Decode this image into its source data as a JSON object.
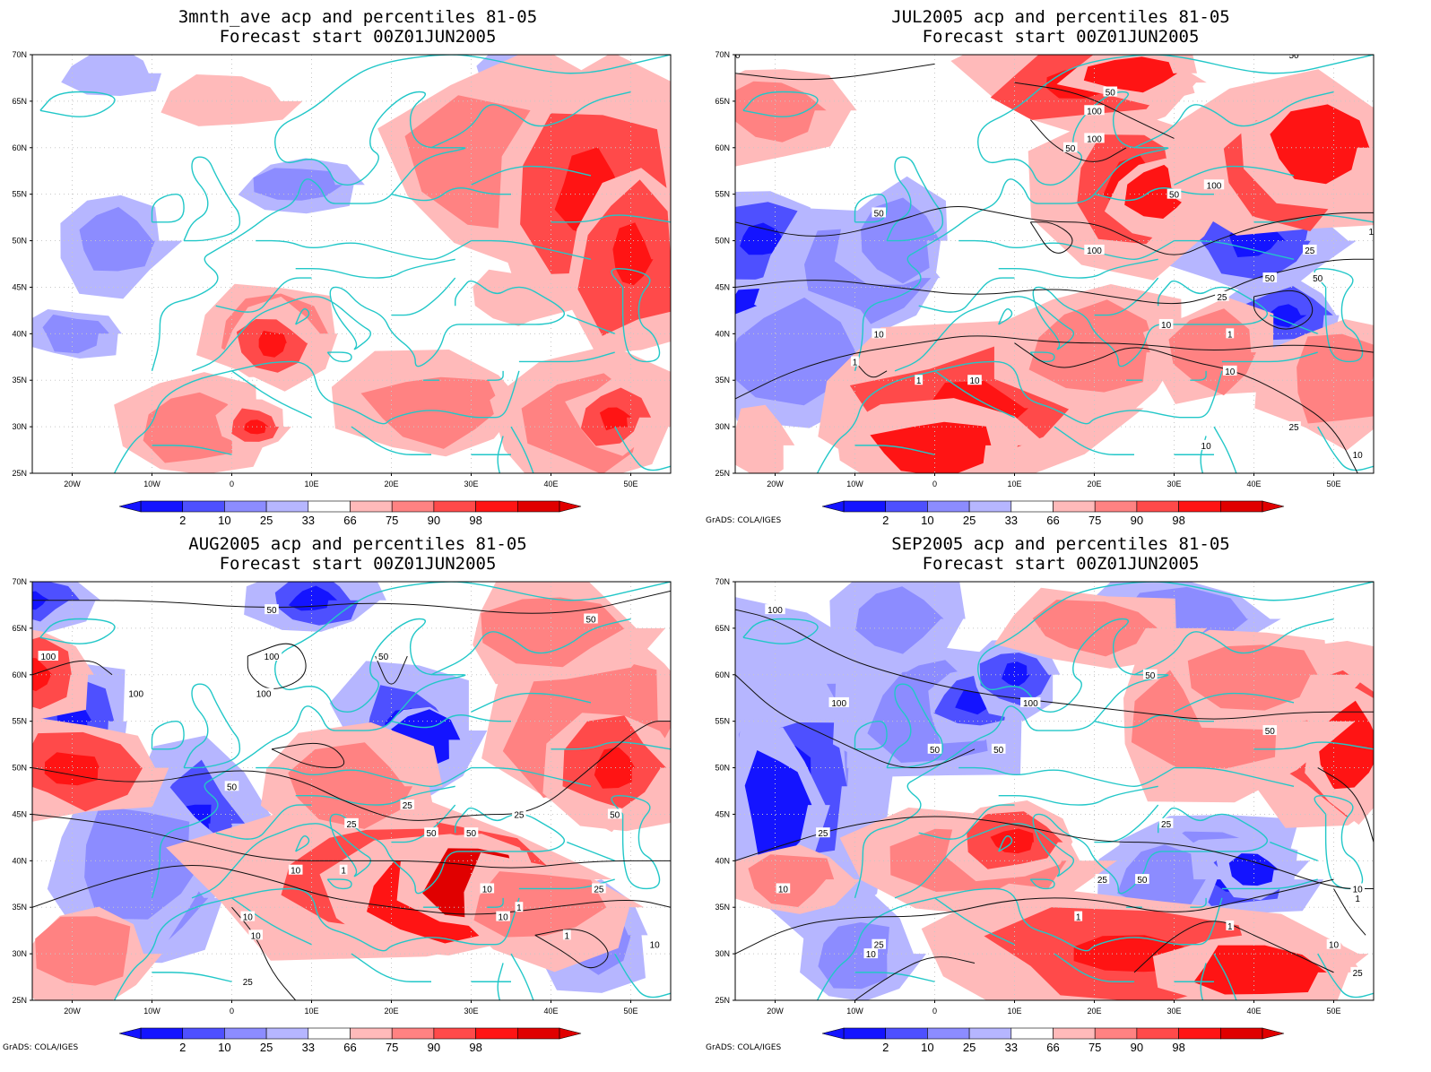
{
  "colors": {
    "ocean_grid": "#c8c8c8",
    "coast": "#22c7c8",
    "contour": "#111111",
    "bins": [
      "#1414ff",
      "#4e50ff",
      "#8c8cff",
      "#b6b6ff",
      "#ffffff",
      "#ffbaba",
      "#ff8282",
      "#ff4a4a",
      "#ff1414",
      "#e00000"
    ]
  },
  "map": {
    "lat_labels": [
      "70N",
      "65N",
      "60N",
      "55N",
      "50N",
      "45N",
      "40N",
      "35N",
      "30N",
      "25N"
    ],
    "lon_labels": [
      "20W",
      "10W",
      "0",
      "10E",
      "20E",
      "30E",
      "40E",
      "50E"
    ],
    "legend_labels": [
      "2",
      "10",
      "25",
      "33",
      "66",
      "75",
      "90",
      "98"
    ],
    "credit": "GrADS: COLA/IGES"
  },
  "panels": [
    {
      "title": "3mnth_ave acp and percentiles 81-05",
      "subtitle": "Forecast start 00Z01JUN2005",
      "show_credit": false,
      "contour_labels": []
    },
    {
      "title": "JUL2005 acp and percentiles 81-05",
      "subtitle": "Forecast start 00Z01JUN2005",
      "show_credit": true,
      "contour_labels": [
        "50",
        "50",
        "100",
        "100",
        "50",
        "100",
        "50",
        "50",
        "50",
        "25",
        "10",
        "100",
        "50",
        "25",
        "10",
        "1",
        "10",
        "10",
        "1",
        "10",
        "1",
        "10",
        "25",
        "50",
        "10"
      ]
    },
    {
      "title": "AUG2005 acp and percentiles 81-05",
      "subtitle": "Forecast start 00Z01JUN2005",
      "show_credit": true,
      "contour_labels": [
        "50",
        "50",
        "100",
        "100",
        "100",
        "50",
        "100",
        "50",
        "50",
        "25",
        "25",
        "50",
        "25",
        "10",
        "10",
        "1",
        "10",
        "25",
        "10",
        "10",
        "1",
        "1",
        "10",
        "50",
        "25"
      ]
    },
    {
      "title": "SEP2005 acp and percentiles 81-05",
      "subtitle": "Forecast start 00Z01JUN2005",
      "show_credit": true,
      "contour_labels": [
        "100",
        "100",
        "100",
        "50",
        "50",
        "25",
        "50",
        "25",
        "10",
        "25",
        "10",
        "1",
        "1",
        "50",
        "50",
        "25",
        "10",
        "1",
        "10",
        "25"
      ]
    }
  ]
}
